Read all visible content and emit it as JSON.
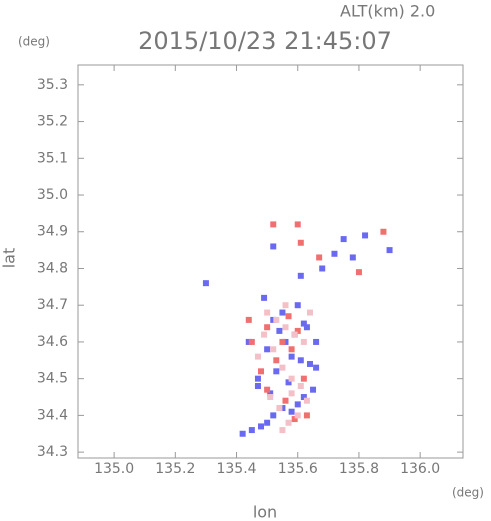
{
  "chart_data": {
    "type": "scatter",
    "subtitle": "ALT(km) 2.0",
    "title": "2015/10/23 21:45:07",
    "y_unit": "(deg)",
    "x_unit": "(deg)",
    "ylabel": "lat",
    "xlabel": "lon",
    "xlim": [
      134.882,
      136.14
    ],
    "ylim": [
      34.284,
      35.354
    ],
    "xticks": [
      {
        "value": 135,
        "label": "135.0"
      },
      135.2,
      135.4,
      135.6,
      135.8,
      {
        "value": 136,
        "label": "136.0"
      }
    ],
    "yticks": [
      34.3,
      34.4,
      34.5,
      34.6,
      34.7,
      34.8,
      34.9,
      {
        "value": 35,
        "label": "35.0"
      },
      35.1,
      35.2,
      35.3
    ],
    "series": [
      {
        "color": "#6a6af0",
        "x": [
          135.42,
          135.45,
          135.48,
          135.5,
          135.52,
          135.55,
          135.58,
          135.6,
          135.62,
          135.65,
          135.47,
          135.53,
          135.57,
          135.61,
          135.64,
          135.5,
          135.56,
          135.59,
          135.63,
          135.66,
          135.52,
          135.55,
          135.6,
          135.62,
          135.49,
          135.54,
          135.58,
          135.51,
          135.66,
          135.72,
          135.75,
          135.78,
          135.82,
          135.9,
          135.68,
          135.52,
          135.61,
          135.3,
          135.44,
          135.47
        ],
        "values": [
          34.35,
          34.36,
          34.37,
          34.38,
          34.4,
          34.42,
          34.41,
          34.43,
          34.45,
          34.47,
          34.5,
          34.52,
          34.49,
          34.55,
          34.54,
          34.58,
          34.6,
          34.62,
          34.64,
          34.6,
          34.66,
          34.68,
          34.7,
          34.65,
          34.72,
          34.63,
          34.56,
          34.46,
          34.53,
          34.84,
          34.88,
          34.83,
          34.89,
          34.85,
          34.8,
          34.86,
          34.78,
          34.76,
          34.6,
          34.48
        ]
      },
      {
        "color": "#f07070",
        "x": [
          135.44,
          135.5,
          135.55,
          135.58,
          135.6,
          135.62,
          135.5,
          135.56,
          135.63,
          135.48,
          135.59,
          135.53,
          135.88,
          135.8,
          135.67,
          135.57,
          135.6,
          135.45,
          135.52,
          135.61
        ],
        "values": [
          34.66,
          34.64,
          34.6,
          34.58,
          34.63,
          34.5,
          34.47,
          34.44,
          34.4,
          34.52,
          34.39,
          34.55,
          34.9,
          34.79,
          34.83,
          34.67,
          34.92,
          34.6,
          34.92,
          34.87
        ]
      },
      {
        "color": "#f4c0c8",
        "x": [
          135.5,
          135.53,
          135.56,
          135.59,
          135.62,
          135.47,
          135.55,
          135.58,
          135.61,
          135.51,
          135.54,
          135.57,
          135.6,
          135.63,
          135.49,
          135.52,
          135.56,
          135.64,
          135.58,
          135.55
        ],
        "values": [
          34.68,
          34.66,
          34.7,
          34.62,
          34.6,
          34.56,
          34.53,
          34.5,
          34.48,
          34.45,
          34.42,
          34.38,
          34.4,
          34.44,
          34.62,
          34.58,
          34.64,
          34.68,
          34.46,
          34.36
        ]
      }
    ]
  }
}
